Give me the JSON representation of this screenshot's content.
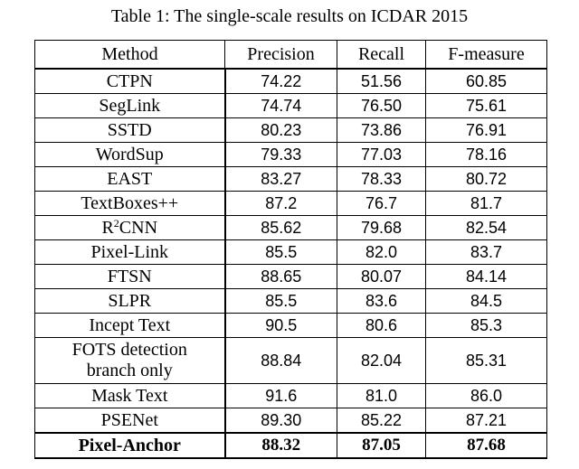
{
  "caption": "Table 1: The single-scale results on ICDAR 2015",
  "table": {
    "headers": [
      "Method",
      "Precision",
      "Recall",
      "F-measure"
    ],
    "rows": [
      {
        "method": "CTPN",
        "precision": "74.22",
        "recall": "51.56",
        "f_measure": "60.85"
      },
      {
        "method": "SegLink",
        "precision": "74.74",
        "recall": "76.50",
        "f_measure": "75.61"
      },
      {
        "method": "SSTD",
        "precision": "80.23",
        "recall": "73.86",
        "f_measure": "76.91"
      },
      {
        "method": "WordSup",
        "precision": "79.33",
        "recall": "77.03",
        "f_measure": "78.16"
      },
      {
        "method": "EAST",
        "precision": "83.27",
        "recall": "78.33",
        "f_measure": "80.72"
      },
      {
        "method": "TextBoxes++",
        "precision": "87.2",
        "recall": "76.7",
        "f_measure": "81.7"
      },
      {
        "method_base": "R",
        "method_sup": "2",
        "method_rest": "CNN",
        "precision": "85.62",
        "recall": "79.68",
        "f_measure": "82.54"
      },
      {
        "method": "Pixel-Link",
        "precision": "85.5",
        "recall": "82.0",
        "f_measure": "83.7"
      },
      {
        "method": "FTSN",
        "precision": "88.65",
        "recall": "80.07",
        "f_measure": "84.14"
      },
      {
        "method": "SLPR",
        "precision": "85.5",
        "recall": "83.6",
        "f_measure": "84.5"
      },
      {
        "method": "Incept Text",
        "precision": "90.5",
        "recall": "80.6",
        "f_measure": "85.3"
      },
      {
        "method_line1": "FOTS detection",
        "method_line2": "branch only",
        "precision": "88.84",
        "recall": "82.04",
        "f_measure": "85.31"
      },
      {
        "method": "Mask Text",
        "precision": "91.6",
        "recall": "81.0",
        "f_measure": "86.0"
      },
      {
        "method": "PSENet",
        "precision": "89.30",
        "recall": "85.22",
        "f_measure": "87.21"
      },
      {
        "method": "Pixel-Anchor",
        "precision": "88.32",
        "recall": "87.05",
        "f_measure": "87.68"
      }
    ]
  }
}
